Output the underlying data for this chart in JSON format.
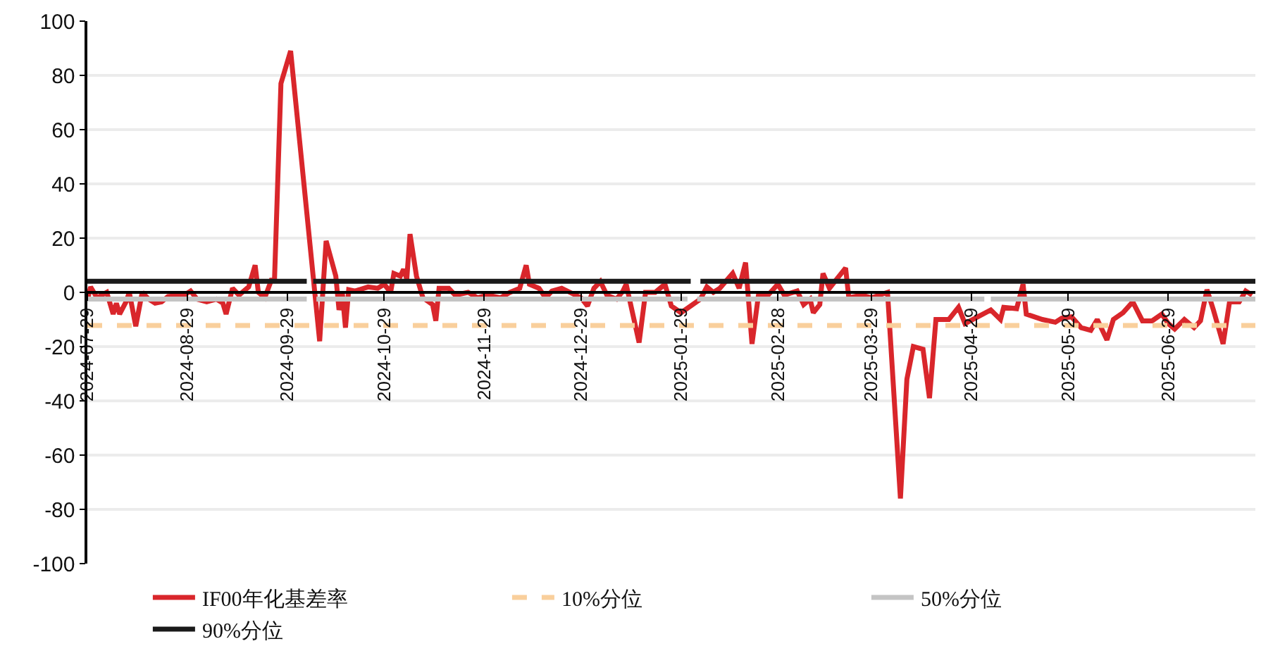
{
  "chart_data": {
    "type": "line",
    "xlim": [
      "2024-07-29",
      "2025-07-26"
    ],
    "xticks": [
      "2024-07-29",
      "2024-08-29",
      "2024-09-29",
      "2024-10-29",
      "2024-11-29",
      "2024-12-29",
      "2025-01-29",
      "2025-02-28",
      "2025-03-29",
      "2025-04-29",
      "2025-05-29",
      "2025-06-29"
    ],
    "ylim": [
      -100,
      100
    ],
    "yticks": [
      -100,
      -80,
      -60,
      -40,
      -20,
      0,
      20,
      40,
      60,
      80,
      100
    ],
    "grid": "y",
    "legend": "bottom",
    "series": [
      {
        "name": "IF00年化基差率",
        "color": "#d9262b",
        "line_style": "solid",
        "x": [
          "2024-07-29",
          "2024-07-30",
          "2024-08-01",
          "2024-08-04",
          "2024-08-06",
          "2024-08-07",
          "2024-08-08",
          "2024-08-10",
          "2024-08-11",
          "2024-08-13",
          "2024-08-15",
          "2024-08-17",
          "2024-08-19",
          "2024-08-21",
          "2024-08-23",
          "2024-08-28",
          "2024-08-30",
          "2024-09-01",
          "2024-09-04",
          "2024-09-07",
          "2024-09-09",
          "2024-09-10",
          "2024-09-12",
          "2024-09-14",
          "2024-09-17",
          "2024-09-19",
          "2024-09-20",
          "2024-09-22",
          "2024-09-24",
          "2024-09-25",
          "2024-09-27",
          "2024-09-30",
          "2024-10-09",
          "2024-10-11",
          "2024-10-14",
          "2024-10-15",
          "2024-10-16",
          "2024-10-17",
          "2024-10-18",
          "2024-10-20",
          "2024-10-24",
          "2024-10-27",
          "2024-10-29",
          "2024-10-31",
          "2024-11-01",
          "2024-11-03",
          "2024-11-04",
          "2024-11-05",
          "2024-11-06",
          "2024-11-08",
          "2024-11-10",
          "2024-11-13",
          "2024-11-14",
          "2024-11-15",
          "2024-11-18",
          "2024-11-20",
          "2024-11-24",
          "2024-11-27",
          "2024-11-30",
          "2024-12-04",
          "2024-12-07",
          "2024-12-10",
          "2024-12-12",
          "2024-12-13",
          "2024-12-16",
          "2024-12-18",
          "2024-12-20",
          "2024-12-23",
          "2024-12-29",
          "2024-12-31",
          "2025-01-02",
          "2025-01-04",
          "2025-01-06",
          "2025-01-09",
          "2025-01-11",
          "2025-01-12",
          "2025-01-16",
          "2025-01-18",
          "2025-01-21",
          "2025-01-24",
          "2025-01-26",
          "2025-01-29",
          "2025-02-04",
          "2025-02-06",
          "2025-02-08",
          "2025-02-10",
          "2025-02-14",
          "2025-02-16",
          "2025-02-18",
          "2025-02-20",
          "2025-02-22",
          "2025-02-25",
          "2025-02-28",
          "2025-03-02",
          "2025-03-06",
          "2025-03-08",
          "2025-03-10",
          "2025-03-11",
          "2025-03-13",
          "2025-03-14",
          "2025-03-16",
          "2025-03-21",
          "2025-03-22",
          "2025-03-26",
          "2025-03-29",
          "2025-04-03",
          "2025-04-07",
          "2025-04-09",
          "2025-04-11",
          "2025-04-14",
          "2025-04-16",
          "2025-04-18",
          "2025-04-22",
          "2025-04-25",
          "2025-04-27",
          "2025-05-01",
          "2025-05-05",
          "2025-05-08",
          "2025-05-09",
          "2025-05-13",
          "2025-05-15",
          "2025-05-16",
          "2025-05-21",
          "2025-05-25",
          "2025-05-27",
          "2025-05-30",
          "2025-06-02",
          "2025-06-05",
          "2025-06-07",
          "2025-06-10",
          "2025-06-12",
          "2025-06-15",
          "2025-06-18",
          "2025-06-21",
          "2025-06-24",
          "2025-06-27",
          "2025-06-29",
          "2025-07-01",
          "2025-07-04",
          "2025-07-07",
          "2025-07-09",
          "2025-07-11",
          "2025-07-13",
          "2025-07-16",
          "2025-07-18",
          "2025-07-21",
          "2025-07-23",
          "2025-07-25"
        ],
        "values": [
          -3,
          2,
          -2,
          0,
          -8,
          -4,
          -8,
          -3.5,
          0,
          -12.5,
          0,
          -2.5,
          -4,
          -3.5,
          -1.5,
          -1,
          0.5,
          -2.5,
          -3.5,
          -2.5,
          -4,
          -8,
          1.5,
          -1,
          2,
          10,
          0,
          -2,
          4.5,
          4.5,
          77,
          89,
          -18,
          19,
          6,
          -6.5,
          0,
          -13,
          1,
          0.5,
          2,
          1.5,
          3,
          0,
          7,
          6,
          8.5,
          5,
          21.5,
          6,
          -2,
          -4.5,
          -10.5,
          1.5,
          1.5,
          -1,
          0,
          -2,
          -1,
          -2,
          0,
          1.5,
          10,
          3,
          1.5,
          -2,
          0.5,
          1.5,
          -2,
          -5,
          1.5,
          4,
          -1,
          -2.5,
          0.5,
          3,
          -18.5,
          0,
          0,
          3,
          -5,
          -7.5,
          -2.5,
          2,
          0,
          1.5,
          7,
          1.5,
          11,
          -19,
          -1,
          -1,
          3,
          -1,
          0.5,
          -4.5,
          -2.5,
          -7.5,
          -4.5,
          7,
          1.5,
          9,
          -2,
          -1,
          -2,
          0,
          -76,
          -32,
          -20,
          -21,
          -39,
          -10,
          -10,
          -5.5,
          -11.5,
          -9,
          -6.5,
          -10,
          -5.5,
          -6,
          3,
          -8,
          -10,
          -11,
          -9.5,
          -9,
          -13,
          -14,
          -10,
          -17.5,
          -10,
          -7.5,
          -3.5,
          -10.5,
          -10.5,
          -8,
          -11.5,
          -13.5,
          -10,
          -13,
          -10.5,
          1,
          -6.5,
          -19,
          -3.5,
          -3.5,
          0.5,
          -1
        ]
      },
      {
        "name": "10%分位",
        "color": "#f9cf9c",
        "line_style": "dashed",
        "x": [
          "2024-07-29",
          "2025-07-26"
        ],
        "values": [
          -12.2,
          -12.2
        ]
      },
      {
        "name": "50%分位",
        "color": "#c4c4c4",
        "line_style": "solid",
        "x": [
          "2024-07-29",
          "2024-10-05",
          "2024-10-06",
          "2024-10-08",
          "2025-01-31",
          "2025-02-01",
          "2025-02-03",
          "2025-05-03",
          "2025-05-04",
          "2025-05-05",
          "2025-07-26"
        ],
        "values": [
          -2.5,
          -2.5,
          null,
          -2.5,
          -2.5,
          null,
          -2.5,
          -2.5,
          null,
          -2.5,
          -2.5
        ]
      },
      {
        "name": "90%分位",
        "color": "#1a1a1a",
        "line_style": "solid",
        "x": [
          "2024-07-29",
          "2024-10-05",
          "2024-10-06",
          "2024-10-07",
          "2025-02-01",
          "2025-02-02",
          "2025-02-04",
          "2025-07-26"
        ],
        "values": [
          4.1,
          4.1,
          null,
          4.1,
          4.1,
          null,
          4.1,
          4.1
        ]
      }
    ]
  }
}
